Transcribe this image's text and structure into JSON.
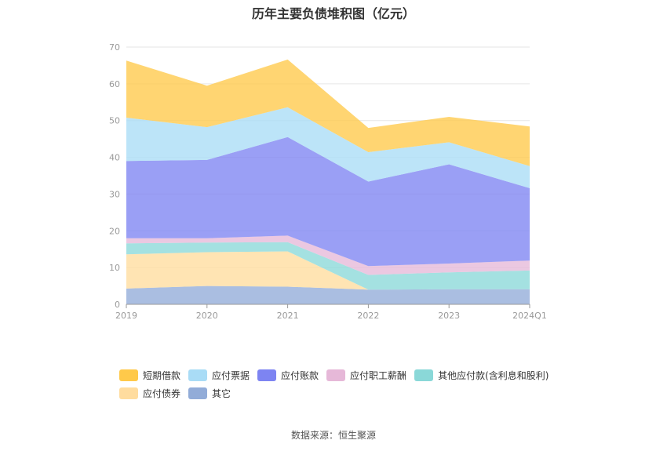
{
  "chart_data": {
    "type": "area",
    "stacked": true,
    "title": "历年主要负债堆积图（亿元）",
    "categories": [
      "2019",
      "2020",
      "2021",
      "2022",
      "2023",
      "2024Q1"
    ],
    "ylim": [
      0,
      70
    ],
    "yticks": [
      0,
      10,
      20,
      30,
      40,
      50,
      60,
      70
    ],
    "grid": true,
    "legend_position": "bottom",
    "series": [
      {
        "name": "其它",
        "color": "#92acd8",
        "values": [
          4.3,
          5.0,
          4.8,
          4.0,
          4.1,
          4.1
        ]
      },
      {
        "name": "应付债券",
        "color": "#ffdc9e",
        "values": [
          9.3,
          9.2,
          9.6,
          0.0,
          0.0,
          0.0
        ]
      },
      {
        "name": "其他应付款(含利息和股利)",
        "color": "#8ad8d8",
        "values": [
          3.0,
          2.6,
          2.5,
          4.0,
          4.6,
          5.1
        ]
      },
      {
        "name": "应付职工薪酬",
        "color": "#e6b8d8",
        "values": [
          1.4,
          1.2,
          1.8,
          2.4,
          2.4,
          2.7
        ]
      },
      {
        "name": "应付账款",
        "color": "#7d84f2",
        "values": [
          21.0,
          21.3,
          26.8,
          23.0,
          27.0,
          19.7
        ]
      },
      {
        "name": "应付票据",
        "color": "#a9dcf6",
        "values": [
          11.8,
          8.9,
          8.1,
          8.0,
          6.0,
          6.0
        ]
      },
      {
        "name": "短期借款",
        "color": "#ffc94a",
        "values": [
          15.5,
          11.3,
          13.0,
          6.6,
          6.9,
          10.8
        ]
      }
    ]
  },
  "legend_order": [
    "短期借款",
    "应付票据",
    "应付账款",
    "应付职工薪酬",
    "其他应付款(含利息和股利)",
    "应付债券",
    "其它"
  ],
  "source": "数据来源：恒生聚源"
}
